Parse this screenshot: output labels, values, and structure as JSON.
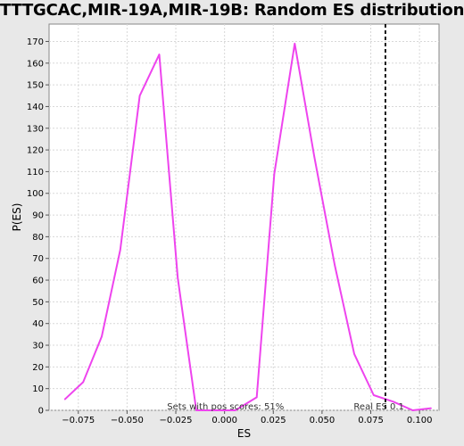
{
  "chart_data": {
    "type": "line",
    "title": "TTTGCAC,MIR-19A,MIR-19B: Random ES distribution",
    "xlabel": "ES",
    "ylabel": "P(ES)",
    "xlim": [
      -0.09,
      0.11
    ],
    "ylim": [
      0,
      178
    ],
    "x_ticks": [
      -0.075,
      -0.05,
      -0.025,
      0.0,
      0.025,
      0.05,
      0.075,
      0.1
    ],
    "x_tick_labels": [
      "−0.075",
      "−0.050",
      "−0.025",
      "0.000",
      "0.025",
      "0.050",
      "0.075",
      "0.100"
    ],
    "y_ticks": [
      0,
      10,
      20,
      30,
      40,
      50,
      60,
      70,
      80,
      90,
      100,
      110,
      120,
      130,
      140,
      150,
      160,
      170
    ],
    "grid": true,
    "series": [
      {
        "color": "#ee44ee",
        "x": [
          -0.082,
          -0.0725,
          -0.063,
          -0.0535,
          -0.0435,
          -0.0335,
          -0.024,
          -0.0145,
          -0.005,
          0.0055,
          0.0165,
          0.0255,
          0.036,
          0.046,
          0.0565,
          0.0665,
          0.0765,
          0.0865,
          0.0965,
          0.106
        ],
        "y": [
          5,
          13,
          34,
          74,
          145,
          164,
          61,
          0,
          0,
          0,
          6,
          109,
          169,
          117,
          67,
          26,
          7,
          4,
          0,
          1
        ]
      }
    ],
    "annotations": {
      "real_es_label": "Real ES 0.1",
      "real_es_x": 0.0825,
      "pos_scores_label": "Sets with pos scores: 51%"
    },
    "colors": {
      "background": "#e8e8e8",
      "plot_background": "#ffffff",
      "line": "#ee44ee",
      "grid": "#d8d8d8",
      "real_es_line": "#000000"
    }
  }
}
